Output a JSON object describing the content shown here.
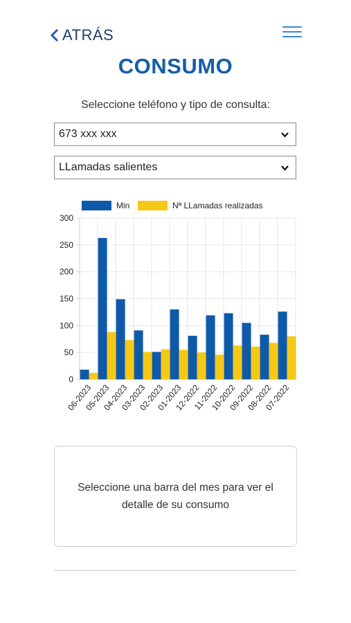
{
  "header": {
    "back_label": "ATRÁS",
    "title": "CONSUMO"
  },
  "form": {
    "prompt": "Seleccione teléfono y tipo de consulta:",
    "phone_value": "673 xxx xxx",
    "type_value": "LLamadas salientes"
  },
  "chart_data": {
    "type": "bar",
    "categories": [
      "06-2023",
      "05-2023",
      "04-2023",
      "03-2023",
      "02-2023",
      "01-2023",
      "12-2022",
      "11-2022",
      "10-2022",
      "09-2022",
      "08-2022",
      "07-2022"
    ],
    "series": [
      {
        "name": "Min",
        "color": "#0f5aa8",
        "values": [
          18,
          263,
          149,
          91,
          51,
          130,
          81,
          119,
          123,
          105,
          83,
          126
        ]
      },
      {
        "name": "Nª LLamadas realizadas",
        "color": "#f6c816",
        "values": [
          12,
          88,
          73,
          51,
          56,
          55,
          50,
          46,
          63,
          61,
          68,
          80
        ]
      }
    ],
    "ylim": [
      0,
      300
    ],
    "yticks": [
      0,
      50,
      100,
      150,
      200,
      250,
      300
    ],
    "grid": true,
    "legend": "top"
  },
  "info_text": "Seleccione una barra del mes para ver el detalle de su consumo"
}
